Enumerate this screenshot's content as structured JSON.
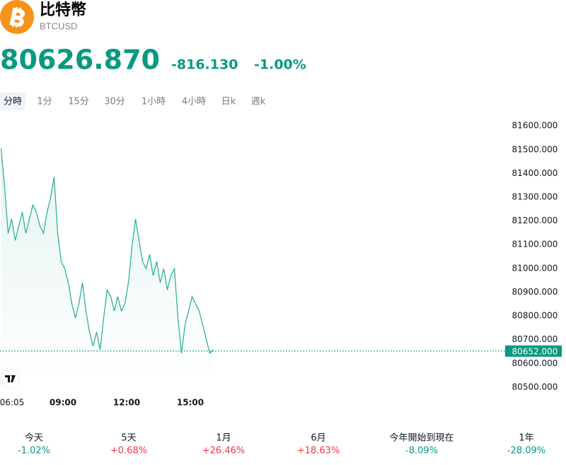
{
  "header": {
    "title": "比特幣",
    "symbol": "BTCUSD",
    "price": "80626.870",
    "change": "-816.130",
    "change_pct": "-1.00%"
  },
  "tabs": [
    "分時",
    "1分",
    "15分",
    "30分",
    "1小時",
    "4小時",
    "日k",
    "週k"
  ],
  "chart_data": {
    "type": "line",
    "x": [
      "06:05",
      "06:15",
      "06:25",
      "06:35",
      "06:45",
      "06:55",
      "07:05",
      "07:15",
      "07:25",
      "07:35",
      "07:45",
      "07:55",
      "08:05",
      "08:15",
      "08:25",
      "08:35",
      "08:45",
      "08:55",
      "09:05",
      "09:15",
      "09:25",
      "09:35",
      "09:45",
      "09:55",
      "10:05",
      "10:15",
      "10:25",
      "10:35",
      "10:45",
      "10:55",
      "11:05",
      "11:15",
      "11:25",
      "11:35",
      "11:45",
      "11:55",
      "12:05",
      "12:15",
      "12:25",
      "12:35",
      "12:45",
      "12:55",
      "13:05",
      "13:15",
      "13:25",
      "13:35",
      "13:45",
      "13:55",
      "14:05",
      "14:15",
      "14:25",
      "14:35",
      "14:45",
      "14:55",
      "15:05",
      "15:15",
      "15:25",
      "15:35",
      "15:45",
      "15:55",
      "16:05"
    ],
    "series": [
      {
        "name": "BTCUSD",
        "color": "#22ab94",
        "values": [
          81505,
          81341,
          81148,
          81208,
          81118,
          81178,
          81237,
          81148,
          81208,
          81267,
          81237,
          81178,
          81148,
          81237,
          81297,
          81386,
          81148,
          81029,
          80999,
          80940,
          80851,
          80791,
          80851,
          80940,
          80821,
          80732,
          80673,
          80732,
          80658,
          80791,
          80910,
          80881,
          80821,
          80881,
          80821,
          80851,
          80940,
          81089,
          81208,
          81118,
          81029,
          80999,
          81059,
          80970,
          81029,
          80940,
          80999,
          80910,
          80970,
          80999,
          80791,
          80643,
          80762,
          80821,
          80881,
          80851,
          80821,
          80762,
          80702,
          80643,
          80658
        ]
      }
    ],
    "xticks": [
      "06:05",
      "09:00",
      "12:00",
      "15:00"
    ],
    "ylim": [
      80464,
      81654
    ],
    "yticks": [
      {
        "value": 80500,
        "label": "80500.000"
      },
      {
        "value": 80600,
        "label": "80600.000"
      },
      {
        "value": 80700,
        "label": "80700.000"
      },
      {
        "value": 80800,
        "label": "80800.000"
      },
      {
        "value": 80900,
        "label": "80900.000"
      },
      {
        "value": 81000,
        "label": "81000.000"
      },
      {
        "value": 81100,
        "label": "81100.000"
      },
      {
        "value": 81200,
        "label": "81200.000"
      },
      {
        "value": 81300,
        "label": "81300.000"
      },
      {
        "value": 81400,
        "label": "81400.000"
      },
      {
        "value": 81500,
        "label": "81500.000"
      },
      {
        "value": 81600,
        "label": "81600.000"
      }
    ],
    "last_price": {
      "value": 80652,
      "label": "80652.000",
      "color": "#089981"
    }
  },
  "periods": [
    {
      "label": "今天",
      "change": "-1.02%",
      "color": "#089981"
    },
    {
      "label": "5天",
      "change": "+0.68%",
      "color": "#f23645"
    },
    {
      "label": "1月",
      "change": "+26.46%",
      "color": "#f23645"
    },
    {
      "label": "6月",
      "change": "+18.63%",
      "color": "#f23645"
    },
    {
      "label": "今年開始到現在",
      "change": "-8.09%",
      "color": "#089981"
    },
    {
      "label": "1年",
      "change": "-28.09%",
      "color": "#089981"
    }
  ]
}
